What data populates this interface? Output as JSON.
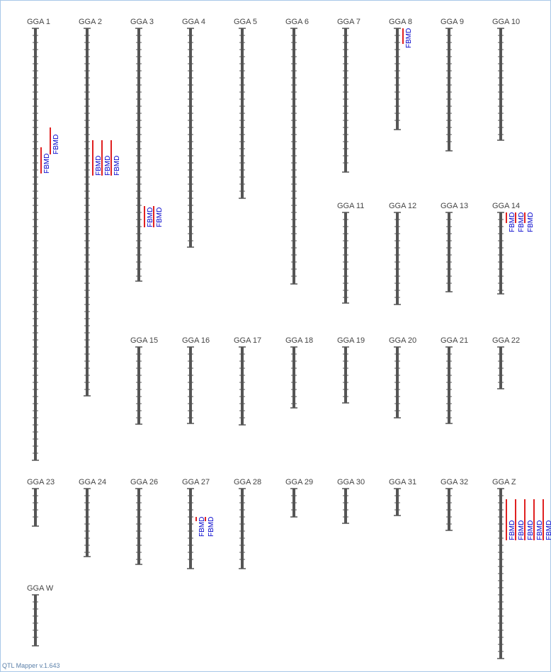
{
  "footer": "QTL Mapper v.1.643",
  "chromosomes": [
    {
      "label": "GGA 1",
      "length": 610,
      "qtls": [
        {
          "label": "FBMD",
          "start": 168,
          "end": 205
        },
        {
          "label": "FBMD",
          "start": 140,
          "end": 178
        }
      ]
    },
    {
      "label": "GGA 2",
      "length": 519,
      "qtls": [
        {
          "label": "FBMD",
          "start": 158,
          "end": 208
        },
        {
          "label": "FBMD",
          "start": 158,
          "end": 208
        },
        {
          "label": "FBMD",
          "start": 158,
          "end": 208
        }
      ]
    },
    {
      "label": "GGA 3",
      "length": 357,
      "qtls": [
        {
          "label": "FBMD",
          "start": 251,
          "end": 281
        },
        {
          "label": "FBMD",
          "start": 251,
          "end": 281
        }
      ]
    },
    {
      "label": "GGA 4",
      "length": 309,
      "qtls": []
    },
    {
      "label": "GGA 5",
      "length": 240,
      "qtls": []
    },
    {
      "label": "GGA 6",
      "length": 361,
      "qtls": []
    },
    {
      "label": "GGA 7",
      "length": 203,
      "qtls": []
    },
    {
      "label": "GGA 8",
      "length": 143,
      "qtls": [
        {
          "label": "FBMD",
          "start": 0,
          "end": 22
        }
      ]
    },
    {
      "label": "GGA 9",
      "length": 173,
      "qtls": []
    },
    {
      "label": "GGA 10",
      "length": 158,
      "qtls": []
    },
    {
      "label": "GGA 11",
      "length": 128,
      "qtls": []
    },
    {
      "label": "GGA 12",
      "length": 130,
      "qtls": []
    },
    {
      "label": "GGA 13",
      "length": 112,
      "qtls": []
    },
    {
      "label": "GGA 14",
      "length": 115,
      "qtls": [
        {
          "label": "FBMD",
          "start": 0,
          "end": 15
        },
        {
          "label": "FBMD",
          "start": 0,
          "end": 15
        },
        {
          "label": "FBMD",
          "start": 0,
          "end": 15
        }
      ]
    },
    {
      "label": "GGA 15",
      "length": 109,
      "qtls": []
    },
    {
      "label": "GGA 16",
      "length": 108,
      "qtls": []
    },
    {
      "label": "GGA 17",
      "length": 110,
      "qtls": []
    },
    {
      "label": "GGA 18",
      "length": 86,
      "qtls": []
    },
    {
      "label": "GGA 19",
      "length": 79,
      "qtls": []
    },
    {
      "label": "GGA 20",
      "length": 100,
      "qtls": []
    },
    {
      "label": "GGA 21",
      "length": 108,
      "qtls": []
    },
    {
      "label": "GGA 22",
      "length": 59,
      "qtls": []
    },
    {
      "label": "GGA 23",
      "length": 53,
      "qtls": []
    },
    {
      "label": "GGA 24",
      "length": 96,
      "qtls": []
    },
    {
      "label": "GGA 26",
      "length": 107,
      "qtls": []
    },
    {
      "label": "GGA 27",
      "length": 113,
      "qtls": [
        {
          "label": "FBMD",
          "start": 40,
          "end": 46
        },
        {
          "label": "FBMD",
          "start": 40,
          "end": 46
        }
      ]
    },
    {
      "label": "GGA 28",
      "length": 113,
      "qtls": []
    },
    {
      "label": "GGA 29",
      "length": 40,
      "qtls": []
    },
    {
      "label": "GGA 30",
      "length": 49,
      "qtls": []
    },
    {
      "label": "GGA 31",
      "length": 38,
      "qtls": []
    },
    {
      "label": "GGA 32",
      "length": 59,
      "qtls": []
    },
    {
      "label": "GGA Z",
      "length": 240,
      "qtls": [
        {
          "label": "FBMD",
          "start": 15,
          "end": 73
        },
        {
          "label": "FBMD",
          "start": 15,
          "end": 73
        },
        {
          "label": "FBMD",
          "start": 15,
          "end": 73
        },
        {
          "label": "FBMD",
          "start": 15,
          "end": 73
        },
        {
          "label": "FBMD",
          "start": 15,
          "end": 73
        }
      ]
    },
    {
      "label": "GGA W",
      "length": 72,
      "qtls": []
    }
  ]
}
